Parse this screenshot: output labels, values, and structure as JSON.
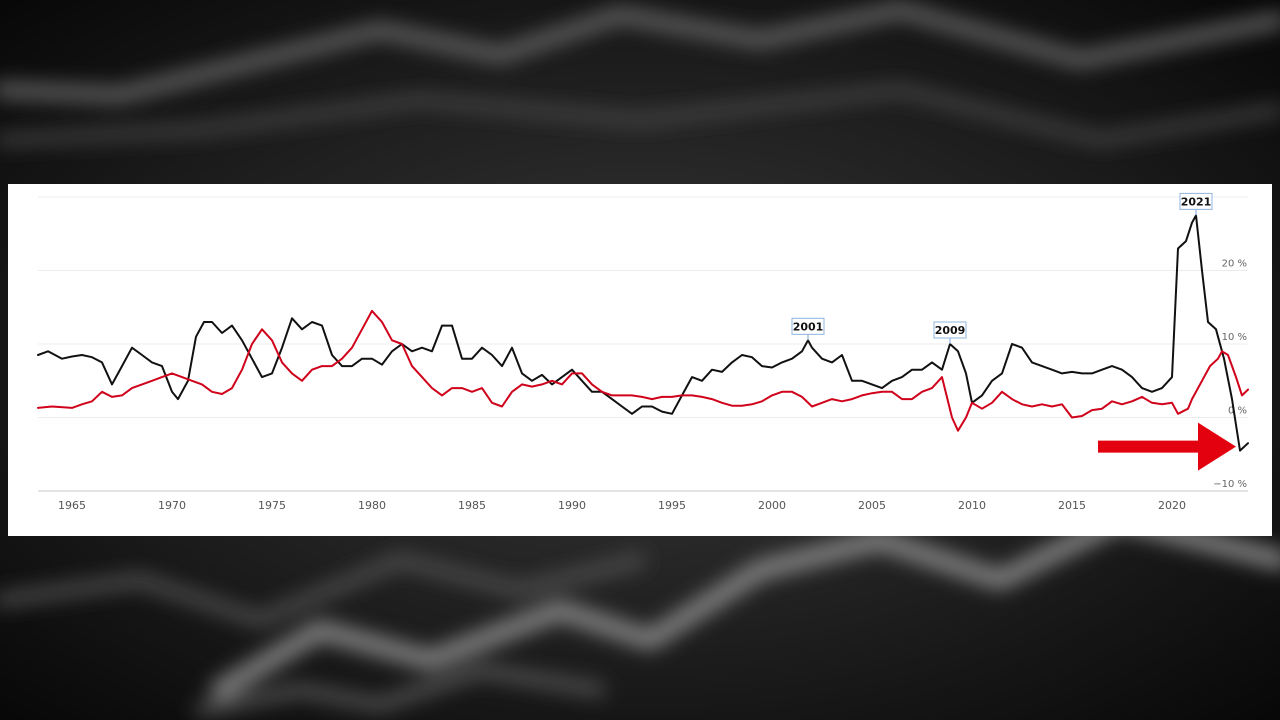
{
  "chart_data": {
    "type": "line",
    "x_ticks": [
      1965,
      1970,
      1975,
      1980,
      1985,
      1990,
      1995,
      2000,
      2005,
      2010,
      2015,
      2020
    ],
    "y_ticks": [
      {
        "value": -10,
        "label": "−10 %"
      },
      {
        "value": 0,
        "label": "0 %"
      },
      {
        "value": 10,
        "label": "10 %"
      },
      {
        "value": 20,
        "label": "20 %"
      }
    ],
    "xlim": [
      1963.3,
      2023.8
    ],
    "ylim": [
      -10,
      30
    ],
    "grid": true,
    "series": [
      {
        "color": "#111111",
        "points": [
          [
            1963.3,
            8.5
          ],
          [
            1963.8,
            9
          ],
          [
            1964.5,
            8
          ],
          [
            1965,
            8.3
          ],
          [
            1965.5,
            8.5
          ],
          [
            1966,
            8.2
          ],
          [
            1966.5,
            7.5
          ],
          [
            1967,
            4.5
          ],
          [
            1967.5,
            7
          ],
          [
            1968,
            9.5
          ],
          [
            1968.5,
            8.5
          ],
          [
            1969,
            7.5
          ],
          [
            1969.5,
            7
          ],
          [
            1970,
            3.5
          ],
          [
            1970.3,
            2.5
          ],
          [
            1970.8,
            5
          ],
          [
            1971.2,
            11
          ],
          [
            1971.6,
            13
          ],
          [
            1972,
            13
          ],
          [
            1972.5,
            11.5
          ],
          [
            1973,
            12.5
          ],
          [
            1973.5,
            10.5
          ],
          [
            1974,
            8
          ],
          [
            1974.5,
            5.5
          ],
          [
            1975,
            6
          ],
          [
            1975.5,
            9.5
          ],
          [
            1976,
            13.5
          ],
          [
            1976.5,
            12
          ],
          [
            1977,
            13
          ],
          [
            1977.5,
            12.5
          ],
          [
            1978,
            8.5
          ],
          [
            1978.5,
            7
          ],
          [
            1979,
            7
          ],
          [
            1979.5,
            8
          ],
          [
            1980,
            8
          ],
          [
            1980.5,
            7.2
          ],
          [
            1981,
            9
          ],
          [
            1981.5,
            10
          ],
          [
            1982,
            9
          ],
          [
            1982.5,
            9.5
          ],
          [
            1983,
            9
          ],
          [
            1983.5,
            12.5
          ],
          [
            1984,
            12.5
          ],
          [
            1984.5,
            8
          ],
          [
            1985,
            8
          ],
          [
            1985.5,
            9.5
          ],
          [
            1986,
            8.5
          ],
          [
            1986.5,
            7
          ],
          [
            1987,
            9.5
          ],
          [
            1987.5,
            6
          ],
          [
            1988,
            5
          ],
          [
            1988.5,
            5.8
          ],
          [
            1989,
            4.5
          ],
          [
            1989.5,
            5.5
          ],
          [
            1990,
            6.5
          ],
          [
            1990.5,
            5
          ],
          [
            1991,
            3.5
          ],
          [
            1991.5,
            3.5
          ],
          [
            1992,
            2.5
          ],
          [
            1992.5,
            1.5
          ],
          [
            1993,
            0.5
          ],
          [
            1993.5,
            1.5
          ],
          [
            1994,
            1.5
          ],
          [
            1994.5,
            0.8
          ],
          [
            1995,
            0.5
          ],
          [
            1995.5,
            3
          ],
          [
            1996,
            5.5
          ],
          [
            1996.5,
            5
          ],
          [
            1997,
            6.5
          ],
          [
            1997.5,
            6.2
          ],
          [
            1998,
            7.5
          ],
          [
            1998.5,
            8.5
          ],
          [
            1999,
            8.2
          ],
          [
            1999.5,
            7
          ],
          [
            2000,
            6.8
          ],
          [
            2000.5,
            7.5
          ],
          [
            2001,
            8
          ],
          [
            2001.5,
            9
          ],
          [
            2001.8,
            10.5
          ],
          [
            2002,
            9.5
          ],
          [
            2002.5,
            8
          ],
          [
            2003,
            7.5
          ],
          [
            2003.5,
            8.5
          ],
          [
            2004,
            5
          ],
          [
            2004.5,
            5
          ],
          [
            2005,
            4.5
          ],
          [
            2005.5,
            4
          ],
          [
            2006,
            5
          ],
          [
            2006.5,
            5.5
          ],
          [
            2007,
            6.5
          ],
          [
            2007.5,
            6.5
          ],
          [
            2008,
            7.5
          ],
          [
            2008.5,
            6.5
          ],
          [
            2008.9,
            10
          ],
          [
            2009.3,
            9
          ],
          [
            2009.7,
            6
          ],
          [
            2010,
            2
          ],
          [
            2010.5,
            3
          ],
          [
            2011,
            5
          ],
          [
            2011.5,
            6
          ],
          [
            2012,
            10
          ],
          [
            2012.5,
            9.5
          ],
          [
            2013,
            7.5
          ],
          [
            2013.5,
            7
          ],
          [
            2014,
            6.5
          ],
          [
            2014.5,
            6
          ],
          [
            2015,
            6.2
          ],
          [
            2015.5,
            6
          ],
          [
            2016,
            6
          ],
          [
            2016.5,
            6.5
          ],
          [
            2017,
            7
          ],
          [
            2017.5,
            6.5
          ],
          [
            2018,
            5.5
          ],
          [
            2018.5,
            4
          ],
          [
            2019,
            3.5
          ],
          [
            2019.5,
            4
          ],
          [
            2020,
            5.5
          ],
          [
            2020.3,
            23
          ],
          [
            2020.7,
            24
          ],
          [
            2021,
            26.5
          ],
          [
            2021.2,
            27.5
          ],
          [
            2021.5,
            20
          ],
          [
            2021.8,
            13
          ],
          [
            2022.2,
            12
          ],
          [
            2022.6,
            8
          ],
          [
            2023,
            2.5
          ],
          [
            2023.4,
            -4.5
          ],
          [
            2023.8,
            -3.5
          ]
        ]
      },
      {
        "color": "#d0021b",
        "points": [
          [
            1963.3,
            1.3
          ],
          [
            1964,
            1.5
          ],
          [
            1965,
            1.3
          ],
          [
            1965.5,
            1.8
          ],
          [
            1966,
            2.2
          ],
          [
            1966.5,
            3.5
          ],
          [
            1967,
            2.8
          ],
          [
            1967.5,
            3
          ],
          [
            1968,
            4
          ],
          [
            1968.5,
            4.5
          ],
          [
            1969,
            5
          ],
          [
            1969.5,
            5.5
          ],
          [
            1970,
            6
          ],
          [
            1970.5,
            5.5
          ],
          [
            1971,
            5
          ],
          [
            1971.5,
            4.5
          ],
          [
            1972,
            3.5
          ],
          [
            1972.5,
            3.2
          ],
          [
            1973,
            4
          ],
          [
            1973.5,
            6.5
          ],
          [
            1974,
            10
          ],
          [
            1974.5,
            12
          ],
          [
            1975,
            10.5
          ],
          [
            1975.5,
            7.5
          ],
          [
            1976,
            6
          ],
          [
            1976.5,
            5
          ],
          [
            1977,
            6.5
          ],
          [
            1977.5,
            7
          ],
          [
            1978,
            7
          ],
          [
            1978.5,
            8
          ],
          [
            1979,
            9.5
          ],
          [
            1979.5,
            12
          ],
          [
            1980,
            14.5
          ],
          [
            1980.5,
            13
          ],
          [
            1981,
            10.5
          ],
          [
            1981.5,
            10
          ],
          [
            1982,
            7
          ],
          [
            1982.5,
            5.5
          ],
          [
            1983,
            4
          ],
          [
            1983.5,
            3
          ],
          [
            1984,
            4
          ],
          [
            1984.5,
            4
          ],
          [
            1985,
            3.5
          ],
          [
            1985.5,
            4
          ],
          [
            1986,
            2
          ],
          [
            1986.5,
            1.5
          ],
          [
            1987,
            3.5
          ],
          [
            1987.5,
            4.5
          ],
          [
            1988,
            4.2
          ],
          [
            1988.5,
            4.5
          ],
          [
            1989,
            5
          ],
          [
            1989.5,
            4.5
          ],
          [
            1990,
            6
          ],
          [
            1990.5,
            6
          ],
          [
            1991,
            4.5
          ],
          [
            1991.5,
            3.5
          ],
          [
            1992,
            3
          ],
          [
            1992.5,
            3
          ],
          [
            1993,
            3
          ],
          [
            1993.5,
            2.8
          ],
          [
            1994,
            2.5
          ],
          [
            1994.5,
            2.8
          ],
          [
            1995,
            2.8
          ],
          [
            1995.5,
            3
          ],
          [
            1996,
            3
          ],
          [
            1996.5,
            2.8
          ],
          [
            1997,
            2.5
          ],
          [
            1997.5,
            2
          ],
          [
            1998,
            1.6
          ],
          [
            1998.5,
            1.6
          ],
          [
            1999,
            1.8
          ],
          [
            1999.5,
            2.2
          ],
          [
            2000,
            3
          ],
          [
            2000.5,
            3.5
          ],
          [
            2001,
            3.5
          ],
          [
            2001.5,
            2.8
          ],
          [
            2002,
            1.5
          ],
          [
            2002.5,
            2
          ],
          [
            2003,
            2.5
          ],
          [
            2003.5,
            2.2
          ],
          [
            2004,
            2.5
          ],
          [
            2004.5,
            3
          ],
          [
            2005,
            3.3
          ],
          [
            2005.5,
            3.5
          ],
          [
            2006,
            3.5
          ],
          [
            2006.5,
            2.5
          ],
          [
            2007,
            2.5
          ],
          [
            2007.5,
            3.5
          ],
          [
            2008,
            4
          ],
          [
            2008.5,
            5.5
          ],
          [
            2009,
            0
          ],
          [
            2009.3,
            -1.8
          ],
          [
            2009.7,
            0
          ],
          [
            2010,
            2
          ],
          [
            2010.5,
            1.2
          ],
          [
            2011,
            2
          ],
          [
            2011.5,
            3.5
          ],
          [
            2012,
            2.5
          ],
          [
            2012.5,
            1.8
          ],
          [
            2013,
            1.5
          ],
          [
            2013.5,
            1.8
          ],
          [
            2014,
            1.5
          ],
          [
            2014.5,
            1.8
          ],
          [
            2015,
            0
          ],
          [
            2015.5,
            0.2
          ],
          [
            2016,
            1
          ],
          [
            2016.5,
            1.2
          ],
          [
            2017,
            2.2
          ],
          [
            2017.5,
            1.8
          ],
          [
            2018,
            2.2
          ],
          [
            2018.5,
            2.8
          ],
          [
            2019,
            2
          ],
          [
            2019.5,
            1.8
          ],
          [
            2020,
            2
          ],
          [
            2020.3,
            0.5
          ],
          [
            2020.8,
            1.2
          ],
          [
            2021,
            2.5
          ],
          [
            2021.5,
            5
          ],
          [
            2021.9,
            7
          ],
          [
            2022.3,
            8
          ],
          [
            2022.5,
            9
          ],
          [
            2022.8,
            8.5
          ],
          [
            2023.2,
            5.5
          ],
          [
            2023.5,
            3
          ],
          [
            2023.8,
            3.8
          ]
        ]
      }
    ],
    "annotations": [
      {
        "label": "2001",
        "x": 2001.8,
        "y": 10.5
      },
      {
        "label": "2009",
        "x": 2008.9,
        "y": 10
      },
      {
        "label": "2021",
        "x": 2021.2,
        "y": 27.5
      }
    ],
    "arrow": {
      "color": "#e3000f",
      "target_x": 2023.4,
      "target_y": -4.5
    }
  }
}
